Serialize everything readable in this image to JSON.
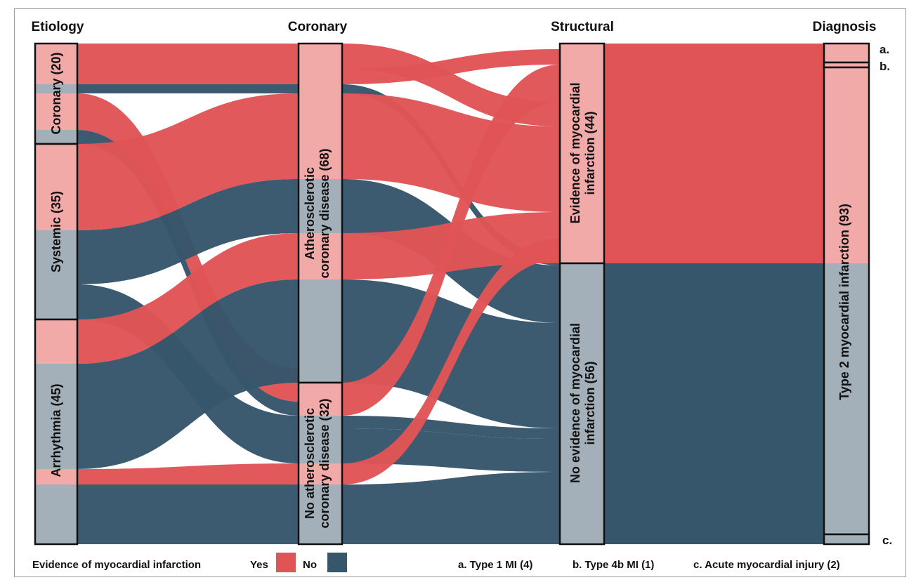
{
  "columns": {
    "etiology": "Etiology",
    "coronary": "Coronary",
    "structural": "Structural",
    "diagnosis": "Diagnosis"
  },
  "nodes": {
    "coronary": "Coronary (20)",
    "systemic": "Systemic (35)",
    "arrhythmia": "Arrhythmia (45)",
    "ath_line1": "Atherosclerotic",
    "ath_line2": "coronary disease (68)",
    "noath_line1": "No atherosclerotic",
    "noath_line2": "coronary disease (32)",
    "evid_line1": "Evidence of myocardial",
    "evid_line2": "infarction (44)",
    "noevid_line1": "No evidence of myocardial",
    "noevid_line2": "infarction (56)",
    "type2": "Type 2 myocardial infarction (93)"
  },
  "markers": {
    "a": "a.",
    "b": "b.",
    "c": "c."
  },
  "legend": {
    "title": "Evidence of myocardial infarction",
    "yes": "Yes",
    "no": "No",
    "note_a": "a. Type 1 MI (4)",
    "note_b": "b. Type 4b MI (1)",
    "note_c": "c. Acute myocardial injury (2)"
  },
  "colors": {
    "yes": "#e05456",
    "no": "#36566b",
    "yes_light": "#f2aaa9",
    "no_light": "#a3b0ba"
  },
  "chart_data": {
    "type": "sankey",
    "stages": [
      "Etiology",
      "Coronary",
      "Structural",
      "Diagnosis"
    ],
    "nodes": [
      {
        "stage": "Etiology",
        "name": "Coronary",
        "count": 20
      },
      {
        "stage": "Etiology",
        "name": "Systemic",
        "count": 35
      },
      {
        "stage": "Etiology",
        "name": "Arrhythmia",
        "count": 45
      },
      {
        "stage": "Coronary",
        "name": "Atherosclerotic coronary disease",
        "count": 68
      },
      {
        "stage": "Coronary",
        "name": "No atherosclerotic coronary disease",
        "count": 32
      },
      {
        "stage": "Structural",
        "name": "Evidence of myocardial infarction",
        "count": 44
      },
      {
        "stage": "Structural",
        "name": "No evidence of myocardial infarction",
        "count": 56
      },
      {
        "stage": "Diagnosis",
        "name": "Type 1 MI",
        "count": 4
      },
      {
        "stage": "Diagnosis",
        "name": "Type 4b MI",
        "count": 1
      },
      {
        "stage": "Diagnosis",
        "name": "Type 2 myocardial infarction",
        "count": 93
      },
      {
        "stage": "Diagnosis",
        "name": "Acute myocardial injury",
        "count": 2
      }
    ],
    "color_by": "Evidence of myocardial infarction",
    "categories": [
      "Yes",
      "No"
    ]
  }
}
